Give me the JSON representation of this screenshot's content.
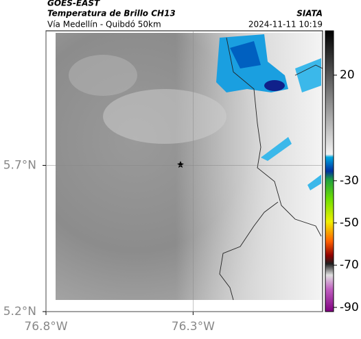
{
  "header": {
    "satellite": "GOES-EAST",
    "product": "Temperatura de Brillo CH13",
    "source": "SIATA",
    "route": "Vía Medellín - Quibdó 50km",
    "timestamp": "2024-11-11 10:19"
  },
  "map": {
    "xlim": [
      -76.8,
      -75.86
    ],
    "ylim": [
      5.2,
      6.16
    ],
    "xticks": [
      {
        "value": -76.8,
        "label": "76.8°W"
      },
      {
        "value": -76.3,
        "label": "76.3°W"
      }
    ],
    "yticks": [
      {
        "value": 5.2,
        "label": "5.2°N"
      },
      {
        "value": 5.7,
        "label": "5.7°N"
      }
    ]
  },
  "colorbar": {
    "lim": [
      -92,
      41
    ],
    "ticks": [
      20,
      -30,
      -50,
      -70,
      -90
    ]
  }
}
